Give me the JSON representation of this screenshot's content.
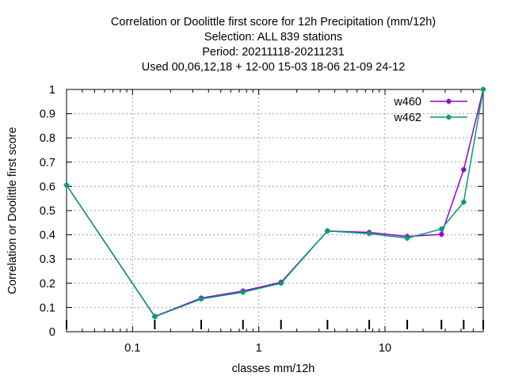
{
  "chart_data": {
    "type": "line",
    "title_lines": [
      "Correlation or Doolittle first score  for 12h Precipitation (mm/12h)",
      "Selection: ALL    839 stations",
      "Period: 20211118-20211231",
      "Used  00,06,12,18  + 12-00 15-03 18-06 21-09 24-12"
    ],
    "xlabel": "classes mm/12h",
    "ylabel": "Correlation or Doolittle first score",
    "x_scale": "log",
    "xlim": [
      0.03,
      60
    ],
    "ylim": [
      0,
      1
    ],
    "x_ticks": [
      {
        "value": 0.1,
        "label": "0.1"
      },
      {
        "value": 1,
        "label": "1"
      },
      {
        "value": 10,
        "label": "10"
      }
    ],
    "y_ticks": [
      {
        "value": 0,
        "label": "0"
      },
      {
        "value": 0.1,
        "label": "0.1"
      },
      {
        "value": 0.2,
        "label": "0.2"
      },
      {
        "value": 0.3,
        "label": "0.3"
      },
      {
        "value": 0.4,
        "label": "0.4"
      },
      {
        "value": 0.5,
        "label": "0.5"
      },
      {
        "value": 0.6,
        "label": "0.6"
      },
      {
        "value": 0.7,
        "label": "0.7"
      },
      {
        "value": 0.8,
        "label": "0.8"
      },
      {
        "value": 0.9,
        "label": "0.9"
      },
      {
        "value": 1,
        "label": "1"
      }
    ],
    "grid": true,
    "legend_position": "top-right",
    "x": [
      0.03,
      0.15,
      0.35,
      0.75,
      1.5,
      3.5,
      7.5,
      15,
      28,
      42,
      60
    ],
    "series": [
      {
        "name": "w460",
        "color": "#9400d3",
        "values": [
          0.605,
          0.063,
          0.139,
          0.168,
          0.204,
          0.416,
          0.41,
          0.393,
          0.402,
          0.669,
          1.0
        ]
      },
      {
        "name": "w462",
        "color": "#009e73",
        "values": [
          0.605,
          0.062,
          0.135,
          0.163,
          0.2,
          0.416,
          0.405,
          0.386,
          0.424,
          0.535,
          1.0
        ]
      }
    ]
  }
}
